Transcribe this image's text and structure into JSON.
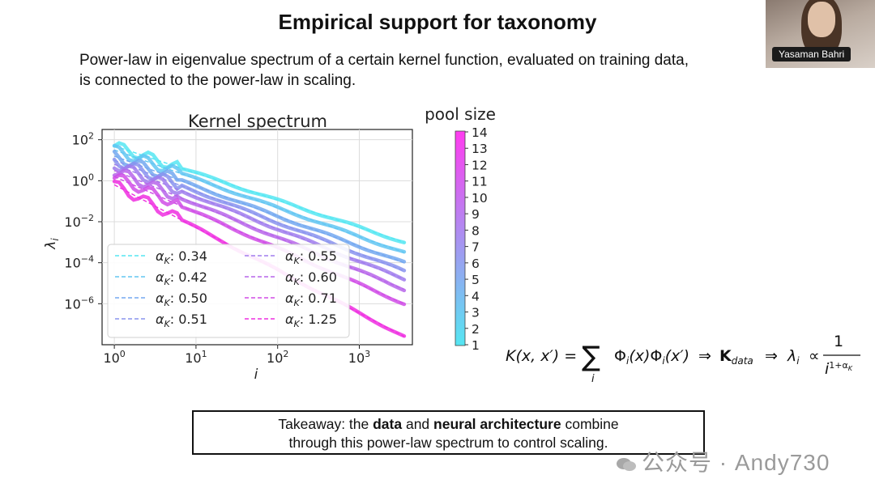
{
  "slide": {
    "title": "Empirical support for taxonomy",
    "subtitle_line1": "Power-law in eigenvalue spectrum of a certain kernel function, evaluated on training data,",
    "subtitle_line2": "is connected to the power-law in scaling."
  },
  "video": {
    "speaker_name": "Yasaman Bahri"
  },
  "takeaway": {
    "prefix": "Takeaway: the ",
    "bold1": "data",
    "mid": " and ",
    "bold2": "neural architecture",
    "suffix": " combine",
    "line2": "through this power-law spectrum to control scaling."
  },
  "formula": {
    "lhs": "K(x, x′) =",
    "sum_symbol": "∑",
    "sum_index": "i",
    "term": "Φ",
    "term_i": "i",
    "arg_x": "(x)",
    "arg_xp": "(x′)",
    "arrow": "⇒",
    "kernel": "K",
    "kernel_sub": "data",
    "lambda": "λ",
    "lambda_sub": "i",
    "propto": "∝",
    "numerator": "1",
    "denominator_base": "i",
    "denominator_exp": "1+α",
    "denominator_exp_sub": "K"
  },
  "watermark": {
    "text": "公众号 · Andy730"
  },
  "colors": {
    "cyan": "#55e6f2",
    "magenta": "#ee2ee0"
  },
  "chart_data": {
    "type": "line",
    "title": "Kernel spectrum",
    "xlabel": "i",
    "ylabel": "λ",
    "ylabel_sub": "i",
    "xscale": "log",
    "yscale": "log",
    "xlim_exp": [
      -0.15,
      3.65
    ],
    "ylim_exp": [
      -8.0,
      2.5
    ],
    "x_ticks": [
      {
        "base": "10",
        "exp": "0",
        "value_exp": 0
      },
      {
        "base": "10",
        "exp": "1",
        "value_exp": 1
      },
      {
        "base": "10",
        "exp": "2",
        "value_exp": 2
      },
      {
        "base": "10",
        "exp": "3",
        "value_exp": 3
      }
    ],
    "y_ticks": [
      {
        "base": "10",
        "exp": "2",
        "value_exp": 2
      },
      {
        "base": "10",
        "exp": "0",
        "value_exp": 0
      },
      {
        "base": "10",
        "exp": "−2",
        "value_exp": -2
      },
      {
        "base": "10",
        "exp": "−4",
        "value_exp": -4
      },
      {
        "base": "10",
        "exp": "−6",
        "value_exp": -6
      }
    ],
    "grid": true,
    "legend_placement": "lower-left",
    "legend_symbol": "α",
    "legend_sub": "K",
    "series": [
      {
        "name": "α_K: 0.34",
        "alpha": "0.34",
        "pool": 1,
        "start_log": 1.7,
        "end_log": -3.0,
        "color": "#55e6f2"
      },
      {
        "name": "α_K: 0.42",
        "alpha": "0.42",
        "pool": 3,
        "start_log": 1.5,
        "end_log": -3.5,
        "color": "#62c6f2"
      },
      {
        "name": "α_K: 0.50",
        "alpha": "0.50",
        "pool": 5,
        "start_log": 1.2,
        "end_log": -4.0,
        "color": "#73a8f0"
      },
      {
        "name": "α_K: 0.51",
        "alpha": "0.51",
        "pool": 6,
        "start_log": 1.0,
        "end_log": -4.4,
        "color": "#8a93ee"
      },
      {
        "name": "α_K: 0.55",
        "alpha": "0.55",
        "pool": 8,
        "start_log": 0.8,
        "end_log": -4.8,
        "color": "#a07ded"
      },
      {
        "name": "α_K: 0.60",
        "alpha": "0.60",
        "pool": 10,
        "start_log": 0.5,
        "end_log": -5.3,
        "color": "#b765ea"
      },
      {
        "name": "α_K: 0.71",
        "alpha": "0.71",
        "pool": 12,
        "start_log": 0.2,
        "end_log": -6.0,
        "color": "#d04ce6"
      },
      {
        "name": "α_K: 1.25",
        "alpha": "1.25",
        "pool": 14,
        "start_log": -0.2,
        "end_log": -7.6,
        "color": "#ee2ee0"
      }
    ],
    "colorbar": {
      "label": "pool size",
      "min": 1,
      "max": 14,
      "ticks": [
        "1",
        "2",
        "3",
        "4",
        "5",
        "6",
        "7",
        "8",
        "9",
        "10",
        "11",
        "12",
        "13",
        "14"
      ],
      "color_low": "#55e6f2",
      "color_high": "#ff3cf0"
    }
  }
}
